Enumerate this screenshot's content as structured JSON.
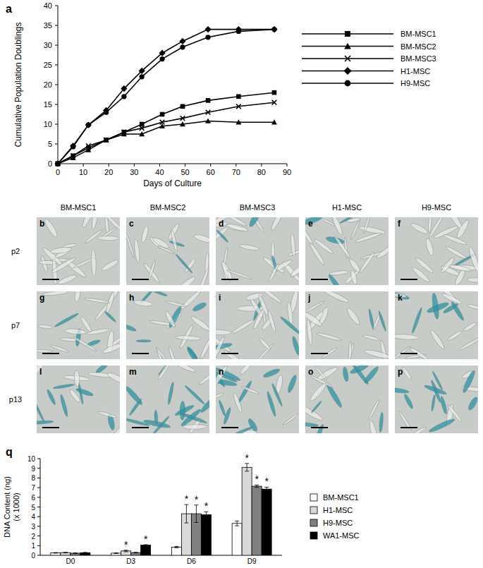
{
  "chart_data": [
    {
      "type": "line",
      "title": "a",
      "xlabel": "Days of Culture",
      "ylabel": "Cumulative Population Doublings",
      "x": [
        0,
        6,
        12,
        19,
        26,
        33,
        41,
        49,
        59,
        71,
        85
      ],
      "xlim": [
        0,
        90
      ],
      "xticks": [
        0,
        10,
        20,
        30,
        40,
        50,
        60,
        70,
        80,
        90
      ],
      "ylim": [
        0,
        40
      ],
      "yticks": [
        0,
        5,
        10,
        15,
        20,
        25,
        30,
        35,
        40
      ],
      "grid": false,
      "legend": "right",
      "series": [
        {
          "name": "BM-MSC1",
          "color": "#000000",
          "marker": "square",
          "line_style": "solid",
          "values": [
            0,
            2,
            4,
            6,
            8,
            10,
            12.5,
            14.5,
            16,
            17,
            18
          ]
        },
        {
          "name": "BM-MSC2",
          "color": "#000000",
          "marker": "triangle",
          "line_style": "solid",
          "values": [
            0,
            1.5,
            3.5,
            6,
            7.5,
            7.5,
            9.5,
            10,
            10.8,
            10.5,
            10.5
          ]
        },
        {
          "name": "BM-MSC3",
          "color": "#000000",
          "marker": "x",
          "line_style": "solid",
          "values": [
            0,
            2,
            4.5,
            6,
            8,
            9,
            10.5,
            11.5,
            13,
            14.5,
            15.5
          ]
        },
        {
          "name": "H1-MSC",
          "color": "#000000",
          "marker": "diamond",
          "line_style": "solid",
          "values": [
            0,
            4.5,
            9.8,
            13.5,
            19,
            23.5,
            28,
            31,
            34,
            34,
            34
          ]
        },
        {
          "name": "H9-MSC",
          "color": "#000000",
          "marker": "circle",
          "line_style": "solid",
          "values": [
            0,
            4.3,
            9.8,
            13,
            17,
            22,
            26.5,
            29.5,
            32,
            33.5,
            34
          ]
        }
      ]
    },
    {
      "type": "bar",
      "title": "q",
      "ylabel": [
        "DNA Content (ng)",
        "(x 1000)"
      ],
      "categories": [
        "D0",
        "D3",
        "D6",
        "D9"
      ],
      "ylim": [
        0,
        10
      ],
      "yticks": [
        0,
        1,
        2,
        3,
        4,
        5,
        6,
        7,
        8,
        9,
        10
      ],
      "grid": false,
      "legend": "right",
      "series": [
        {
          "name": "BM-MSC1",
          "color": "#ffffff",
          "values": [
            0.25,
            0.22,
            0.85,
            3.3
          ],
          "errors": [
            0.03,
            0.03,
            0.07,
            0.25
          ],
          "annotations": [
            null,
            null,
            null,
            null
          ]
        },
        {
          "name": "H1-MSC",
          "color": "#d9d9d9",
          "values": [
            0.28,
            0.45,
            4.3,
            9.1
          ],
          "errors": [
            0.03,
            0.08,
            0.95,
            0.4
          ],
          "annotations": [
            null,
            "*",
            "*",
            "*"
          ]
        },
        {
          "name": "H9-MSC",
          "color": "#808080",
          "values": [
            0.22,
            0.28,
            4.3,
            7.15
          ],
          "errors": [
            0.03,
            0.03,
            0.9,
            0.12
          ],
          "annotations": [
            null,
            null,
            "*",
            "*"
          ]
        },
        {
          "name": "WA1-MSC",
          "color": "#000000",
          "values": [
            0.27,
            1.05,
            4.2,
            6.85
          ],
          "errors": [
            0.03,
            0.05,
            0.3,
            0.2
          ],
          "annotations": [
            null,
            "*",
            "*",
            "*"
          ]
        }
      ]
    }
  ],
  "micrographs": {
    "columns": [
      "BM-MSC1",
      "BM-MSC2",
      "BM-MSC3",
      "H1-MSC",
      "H9-MSC"
    ],
    "rows": [
      {
        "label": "p2",
        "panels": [
          "b",
          "c",
          "d",
          "e",
          "f"
        ]
      },
      {
        "label": "p7",
        "panels": [
          "g",
          "h",
          "i",
          "j",
          "k"
        ]
      },
      {
        "label": "p13",
        "panels": [
          "l",
          "m",
          "n",
          "o",
          "p"
        ]
      }
    ]
  }
}
